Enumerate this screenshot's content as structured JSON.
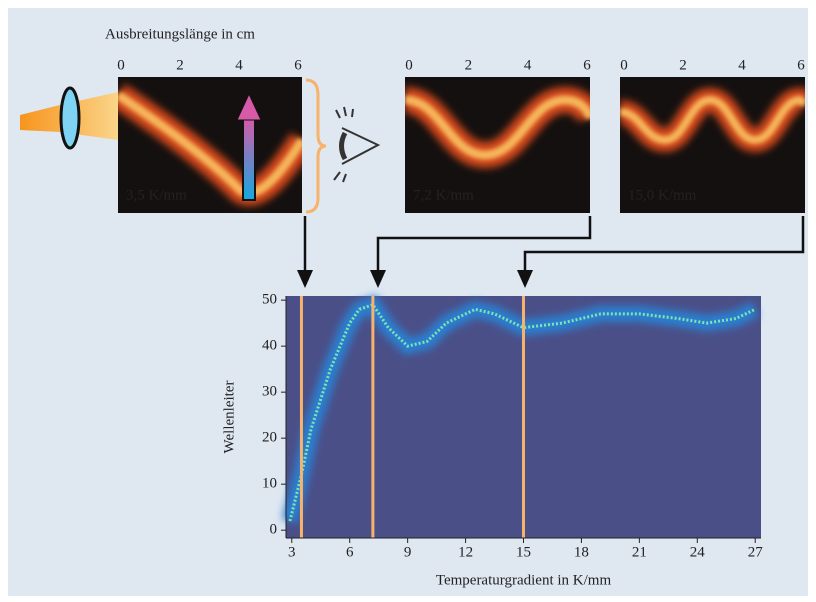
{
  "chart_data": {
    "type": "line",
    "panel_xlabel": "Ausbreitungslänge in cm",
    "panel_xlim": [
      0,
      6
    ],
    "panel_xticks": [
      0,
      2,
      4,
      6
    ],
    "x_label": "Temperaturgradient in K/mm",
    "y_label": "Wellenleiter",
    "xlim": [
      2.7,
      27.3
    ],
    "ylim": [
      -1.7,
      50.9
    ],
    "xticks": [
      3,
      6,
      9,
      12,
      15,
      18,
      21,
      24,
      27
    ],
    "yticks": [
      0,
      10,
      20,
      30,
      40,
      50
    ],
    "markers": {
      "values": [
        3.5,
        7.2,
        15.0
      ],
      "value_labels": [
        "3,5 K/mm",
        "7,2 K/mm",
        "15,0 K/mm"
      ],
      "color": "#f7b36b"
    },
    "series": [
      {
        "color": "#7de3b0",
        "x": [
          2.9,
          3.5,
          4,
          5,
          6,
          6.5,
          7.2,
          8,
          9,
          10,
          11,
          12.5,
          13.5,
          15,
          17,
          19,
          21,
          23,
          24.5,
          26,
          27
        ],
        "values": [
          2,
          12,
          22,
          35,
          45,
          48,
          49,
          44,
          40,
          41,
          45,
          48,
          47,
          44,
          45,
          47,
          47,
          46,
          45,
          46,
          48
        ]
      }
    ]
  }
}
